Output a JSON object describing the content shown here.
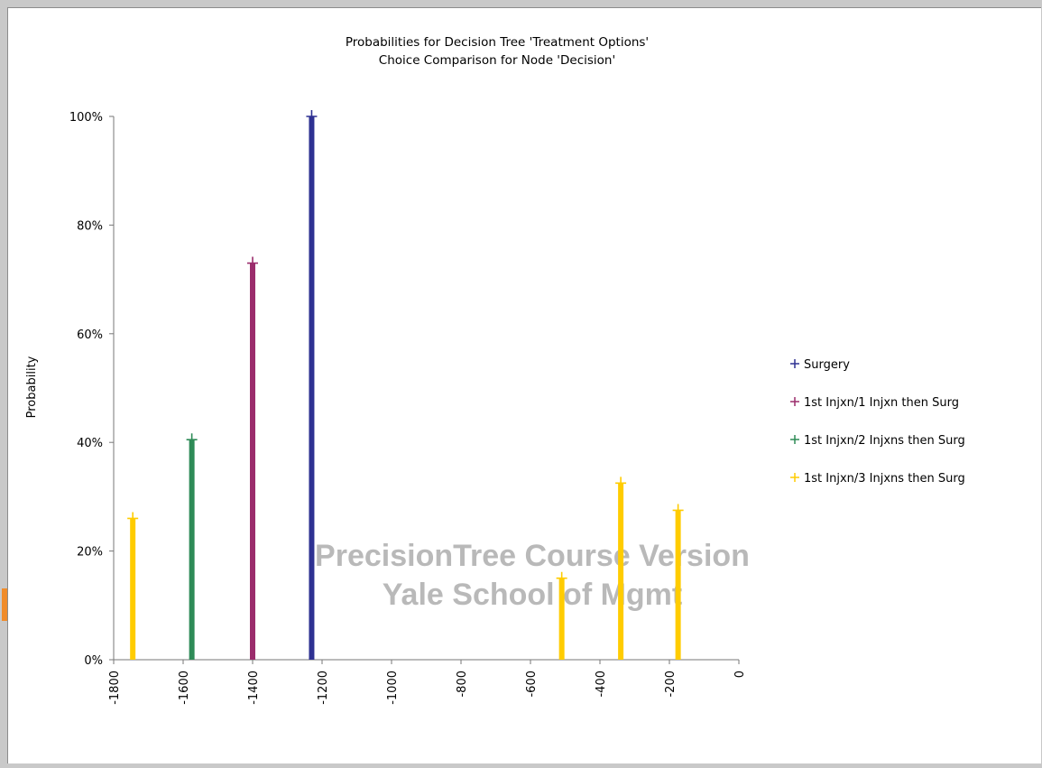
{
  "chart_data": {
    "type": "bar",
    "title": "Probabilities for Decision Tree 'Treatment Options'",
    "subtitle": "Choice Comparison for Node 'Decision'",
    "ylabel": "Probability",
    "xlabel": "",
    "xlim": [
      -1800,
      0
    ],
    "ylim": [
      0,
      1
    ],
    "x_ticks": [
      "-1800",
      "-1600",
      "-1400",
      "-1200",
      "-1000",
      "-800",
      "-600",
      "-400",
      "-200",
      "0"
    ],
    "y_ticks": [
      "0%",
      "20%",
      "40%",
      "60%",
      "80%",
      "100%"
    ],
    "legend_position": "right",
    "series": [
      {
        "name": "Surgery",
        "color": "#2e3192",
        "points": [
          {
            "x": -1230,
            "y": 1.0
          }
        ]
      },
      {
        "name": "1st Injxn/1 Injxn then Surg",
        "color": "#9b2d6c",
        "points": [
          {
            "x": -1400,
            "y": 0.73
          }
        ]
      },
      {
        "name": "1st Injxn/2 Injxns then Surg",
        "color": "#2e8b57",
        "points": [
          {
            "x": -1575,
            "y": 0.405
          }
        ]
      },
      {
        "name": "1st Injxn/3 Injxns then Surg",
        "color": "#ffcc00",
        "points": [
          {
            "x": -1745,
            "y": 0.26
          },
          {
            "x": -510,
            "y": 0.15
          },
          {
            "x": -340,
            "y": 0.325
          },
          {
            "x": -175,
            "y": 0.275
          }
        ]
      }
    ]
  },
  "watermark": {
    "line1": "PrecisionTree Course Version",
    "line2": "Yale School of Mgmt"
  }
}
